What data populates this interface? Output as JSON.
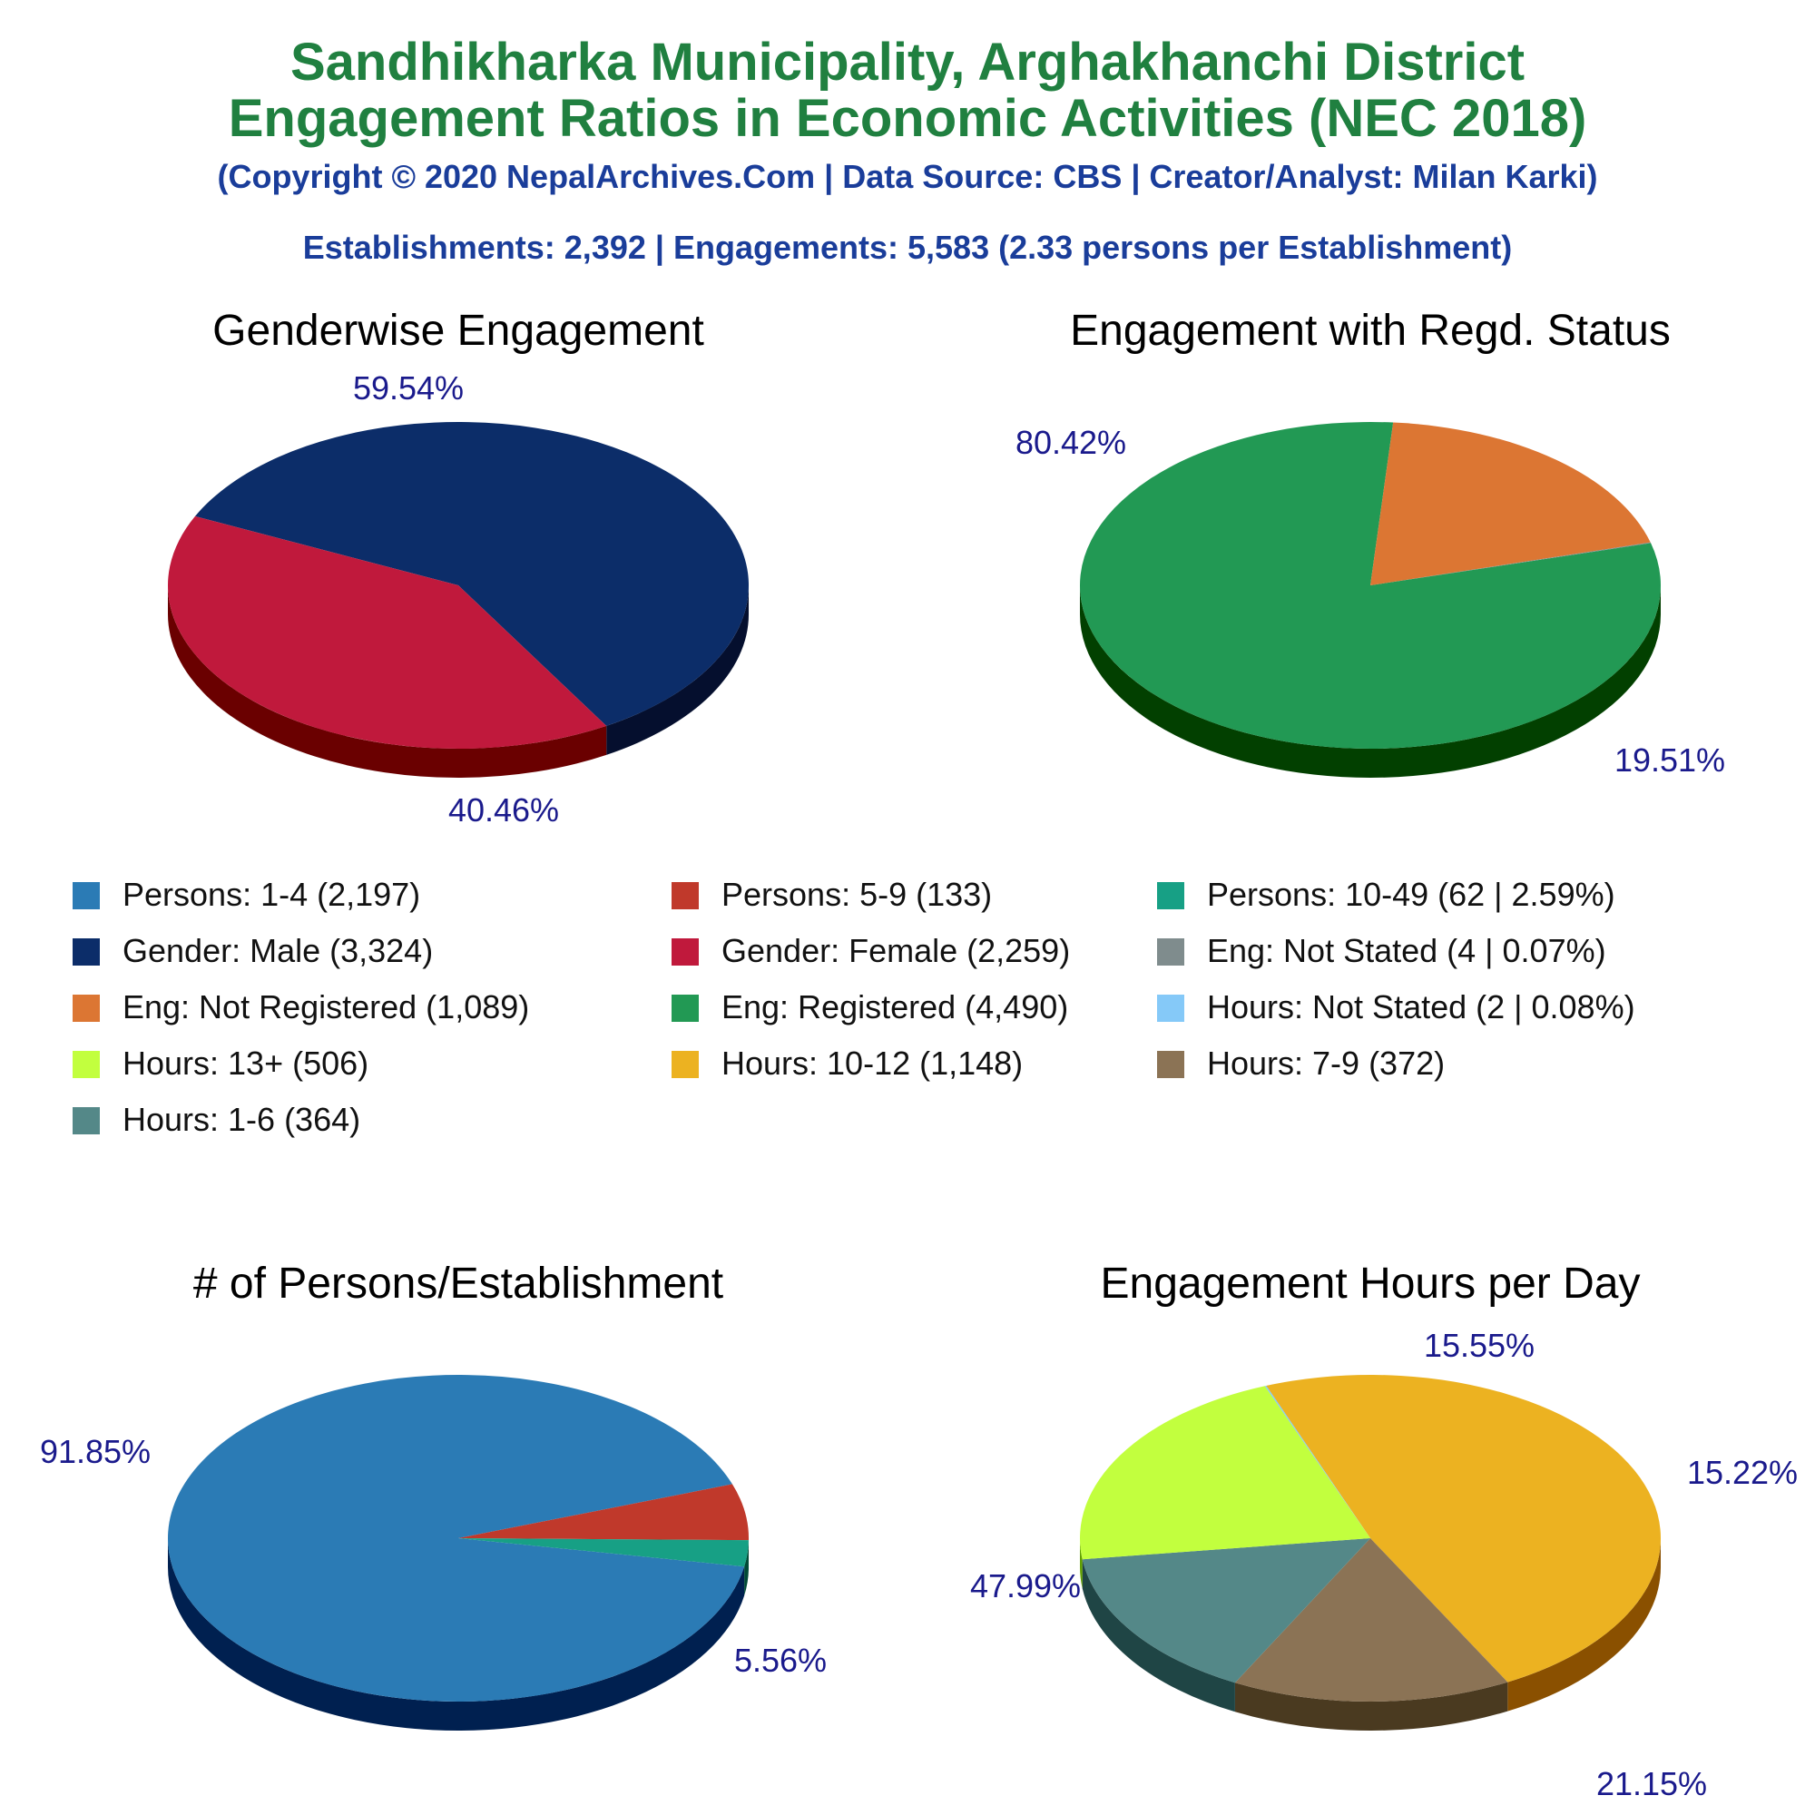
{
  "header": {
    "title_line1": "Sandhikharka Municipality, Arghakhanchi District",
    "title_line2": "Engagement Ratios in Economic Activities (NEC 2018)",
    "copyright": "(Copyright © 2020 NepalArchives.Com | Data Source: CBS | Creator/Analyst: Milan Karki)",
    "summary": "Establishments: 2,392 | Engagements: 5,583 (2.33 persons per Establishment)"
  },
  "legend": [
    {
      "label": "Persons: 1-4 (2,197)",
      "color": "#2b7bb5"
    },
    {
      "label": "Persons: 5-9 (133)",
      "color": "#c0392b"
    },
    {
      "label": "Persons: 10-49 (62 | 2.59%)",
      "color": "#17a085"
    },
    {
      "label": "Gender: Male (3,324)",
      "color": "#0c2d69"
    },
    {
      "label": "Gender: Female (2,259)",
      "color": "#c0193c"
    },
    {
      "label": "Eng: Not Stated (4 | 0.07%)",
      "color": "#7f8c8d"
    },
    {
      "label": "Eng: Not Registered (1,089)",
      "color": "#dc7633"
    },
    {
      "label": "Eng: Registered (4,490)",
      "color": "#229954"
    },
    {
      "label": "Hours: Not Stated (2 | 0.08%)",
      "color": "#85c9f8"
    },
    {
      "label": "Hours: 13+ (506)",
      "color": "#c2ff3e"
    },
    {
      "label": "Hours: 10-12 (1,148)",
      "color": "#ecb221"
    },
    {
      "label": "Hours: 7-9 (372)",
      "color": "#8b7355"
    },
    {
      "label": "Hours: 1-6 (364)",
      "color": "#548888"
    }
  ],
  "chart_data": [
    {
      "type": "pie",
      "title": "Genderwise Engagement",
      "slices": [
        {
          "name": "Gender: Male",
          "value": 59.54,
          "label": "59.54%",
          "color": "#0c2d69",
          "side": "#050f2e"
        },
        {
          "name": "Gender: Female",
          "value": 40.46,
          "label": "40.46%",
          "color": "#c0193c",
          "side": "#6a0000"
        }
      ]
    },
    {
      "type": "pie",
      "title": "Engagement with Regd. Status",
      "slices": [
        {
          "name": "Eng: Registered",
          "value": 80.42,
          "label": "80.42%",
          "color": "#229954",
          "side": "#024000"
        },
        {
          "name": "Eng: Not Registered",
          "value": 19.51,
          "label": "19.51%",
          "color": "#dc7633",
          "side": "#7a1b00"
        },
        {
          "name": "Eng: Not Stated",
          "value": 0.07,
          "label": "",
          "color": "#7f8c8d",
          "side": "#3e4545"
        }
      ]
    },
    {
      "type": "pie",
      "title": "# of Persons/Establishment",
      "slices": [
        {
          "name": "Persons: 1-4",
          "value": 91.85,
          "label": "91.85%",
          "color": "#2b7bb5",
          "side": "#002050"
        },
        {
          "name": "Persons: 5-9",
          "value": 5.56,
          "label": "5.56%",
          "color": "#c0392b",
          "side": "#6a0000"
        },
        {
          "name": "Persons: 10-49",
          "value": 2.59,
          "label": "",
          "color": "#17a085",
          "side": "#004a35"
        }
      ]
    },
    {
      "type": "pie",
      "title": "Engagement Hours per Day",
      "slices": [
        {
          "name": "Hours: 10-12",
          "value": 47.99,
          "label": "47.99%",
          "color": "#ecb221",
          "side": "#8a5000"
        },
        {
          "name": "Hours: 7-9",
          "value": 15.55,
          "label": "15.55%",
          "color": "#8b7355",
          "side": "#4a3a20"
        },
        {
          "name": "Hours: 1-6",
          "value": 15.22,
          "label": "15.22%",
          "color": "#548888",
          "side": "#1f4545"
        },
        {
          "name": "Hours: 13+",
          "value": 21.15,
          "label": "21.15%",
          "color": "#c2ff3e",
          "side": "#60a000"
        },
        {
          "name": "Hours: Not Stated",
          "value": 0.08,
          "label": "",
          "color": "#85c9f8",
          "side": "#3a6a90"
        }
      ]
    }
  ]
}
